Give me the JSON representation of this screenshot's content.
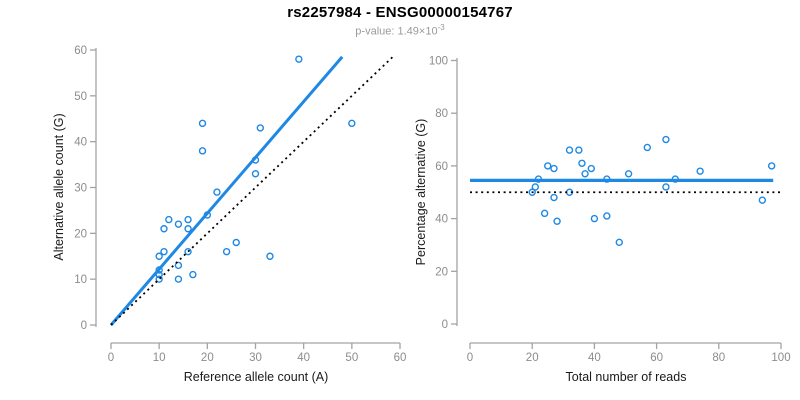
{
  "header": {
    "title": "rs2257984 - ENSG00000154767",
    "p_value_prefix": "p-value: 1.49×10",
    "p_value_exponent": "-3"
  },
  "colors": {
    "accent_blue": "#1E88E5",
    "dotted_line": "#000000",
    "axis": "#a3a3a3",
    "tick_text": "#8c8c8c",
    "label_text": "#1a1a1a",
    "subtitle_text": "#9a9a9a"
  },
  "chart_data": [
    {
      "id": "ref-vs-alt-scatter",
      "type": "scatter",
      "title": "",
      "xlabel": "Reference allele count (A)",
      "ylabel": "Alternative allele count (G)",
      "xlim": [
        0,
        60
      ],
      "ylim": [
        0,
        60
      ],
      "xticks": [
        0,
        10,
        20,
        30,
        40,
        50,
        60
      ],
      "yticks": [
        0,
        10,
        20,
        30,
        40,
        50,
        60
      ],
      "grid": false,
      "legend": null,
      "points": [
        [
          10,
          10
        ],
        [
          10,
          11
        ],
        [
          10,
          12
        ],
        [
          14,
          10
        ],
        [
          17,
          11
        ],
        [
          14,
          13
        ],
        [
          10,
          15
        ],
        [
          11,
          16
        ],
        [
          16,
          16
        ],
        [
          24,
          16
        ],
        [
          26,
          18
        ],
        [
          33,
          15
        ],
        [
          11,
          21
        ],
        [
          16,
          21
        ],
        [
          14,
          22
        ],
        [
          12,
          23
        ],
        [
          16,
          23
        ],
        [
          20,
          24
        ],
        [
          22,
          29
        ],
        [
          30,
          33
        ],
        [
          30,
          36
        ],
        [
          19,
          38
        ],
        [
          31,
          43
        ],
        [
          19,
          44
        ],
        [
          50,
          44
        ],
        [
          39,
          58
        ]
      ],
      "lines": [
        {
          "name": "fitted-line",
          "style": "solid",
          "color": "accent_blue",
          "x1": 0,
          "y1": 0,
          "x2": 48,
          "y2": 58.5,
          "width": 3
        },
        {
          "name": "identity-line",
          "style": "dotted",
          "color": "dotted_line",
          "x1": 0,
          "y1": 0,
          "x2": 58.5,
          "y2": 58.5,
          "width": 1.8
        }
      ]
    },
    {
      "id": "reads-vs-percentage-scatter",
      "type": "scatter",
      "title": "",
      "xlabel": "Total number of reads",
      "ylabel": "Percentage alternative (G)",
      "xlim": [
        0,
        100
      ],
      "ylim": [
        0,
        100
      ],
      "xticks": [
        0,
        20,
        40,
        60,
        80,
        100
      ],
      "yticks": [
        0,
        20,
        40,
        60,
        80,
        100
      ],
      "grid": false,
      "legend": null,
      "points": [
        [
          20,
          50
        ],
        [
          21,
          52
        ],
        [
          22,
          55
        ],
        [
          24,
          42
        ],
        [
          25,
          60
        ],
        [
          27,
          48
        ],
        [
          27,
          59
        ],
        [
          28,
          39
        ],
        [
          32,
          50
        ],
        [
          32,
          66
        ],
        [
          35,
          66
        ],
        [
          36,
          61
        ],
        [
          37,
          57
        ],
        [
          39,
          59
        ],
        [
          40,
          40
        ],
        [
          44,
          55
        ],
        [
          44,
          41
        ],
        [
          48,
          31
        ],
        [
          51,
          57
        ],
        [
          57,
          67
        ],
        [
          63,
          70
        ],
        [
          63,
          52
        ],
        [
          66,
          55
        ],
        [
          74,
          58
        ],
        [
          94,
          47
        ],
        [
          97,
          60
        ]
      ],
      "lines": [
        {
          "name": "mean-percentage-line",
          "style": "solid",
          "color": "accent_blue",
          "x1": 0,
          "y1": 54.5,
          "x2": 97.5,
          "y2": 54.5,
          "width": 3.2
        },
        {
          "name": "expected-50-line",
          "style": "dotted",
          "color": "dotted_line",
          "x1": 0,
          "y1": 50,
          "x2": 100,
          "y2": 50,
          "width": 1.8
        }
      ]
    }
  ]
}
